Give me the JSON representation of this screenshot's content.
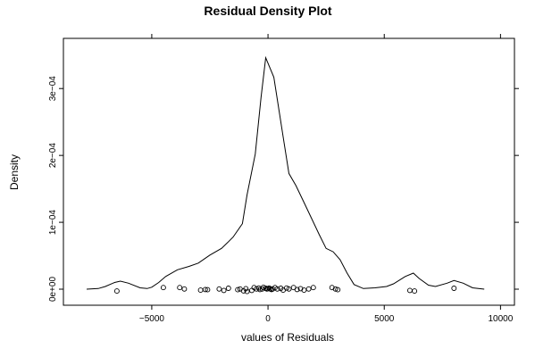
{
  "chart_data": {
    "type": "line",
    "title": "Residual Density Plot",
    "xlabel": "values of Residuals",
    "ylabel": "Density",
    "xlim": [
      -8800,
      10600
    ],
    "ylim": [
      -2.4e-05,
      0.000375
    ],
    "x_ticks": [
      {
        "value": -5000,
        "label": "−5000"
      },
      {
        "value": 0,
        "label": "0"
      },
      {
        "value": 5000,
        "label": "5000"
      },
      {
        "value": 10000,
        "label": "10000"
      }
    ],
    "y_ticks": [
      {
        "value": 0,
        "label": "0e+00"
      },
      {
        "value": 0.0001,
        "label": "1e−04"
      },
      {
        "value": 0.0002,
        "label": "2e−04"
      },
      {
        "value": 0.0003,
        "label": "3e−04"
      }
    ],
    "grid": false,
    "series": [
      {
        "x": [
          -7800,
          -7300,
          -7000,
          -6600,
          -6350,
          -6000,
          -5500,
          -5200,
          -5000,
          -4700,
          -4400,
          -3900,
          -3400,
          -3000,
          -2500,
          -2000,
          -1700,
          -1500,
          -1100,
          -900,
          -550,
          -300,
          -100,
          250,
          650,
          900,
          1200,
          1600,
          2200,
          2500,
          2800,
          3100,
          3400,
          3700,
          4100,
          4600,
          5100,
          5400,
          5900,
          6250,
          6500,
          6900,
          7200,
          7700,
          8000,
          8400,
          8800,
          9300
        ],
        "y": [
          0.0,
          1e-06,
          4e-06,
          1e-05,
          1.2e-05,
          9e-06,
          2e-06,
          1e-06,
          3e-06,
          1e-05,
          1.9e-05,
          2.9e-05,
          3.4e-05,
          3.9e-05,
          5.1e-05,
          6.1e-05,
          7.1e-05,
          7.8e-05,
          9.8e-05,
          0.000141,
          0.000202,
          0.000287,
          0.000346,
          0.000317,
          0.000228,
          0.000173,
          0.000155,
          0.000126,
          8.2e-05,
          6.1e-05,
          5.6e-05,
          4.4e-05,
          2.4e-05,
          7e-06,
          1e-06,
          2e-06,
          4e-06,
          8e-06,
          1.9e-05,
          2.4e-05,
          1.6e-05,
          6e-06,
          4e-06,
          9e-06,
          1.3e-05,
          9e-06,
          2e-06,
          0.0
        ]
      }
    ],
    "rug_points": [
      {
        "x": -6500,
        "y": -2.8e-06
      },
      {
        "x": -4500,
        "y": 2.4e-06
      },
      {
        "x": -3800,
        "y": 2.4e-06
      },
      {
        "x": -3600,
        "y": 3e-07
      },
      {
        "x": -2900,
        "y": -1.5e-06
      },
      {
        "x": -2700,
        "y": -5e-07
      },
      {
        "x": -2600,
        "y": -8e-07
      },
      {
        "x": -2100,
        "y": 3e-07
      },
      {
        "x": -1900,
        "y": -1.8e-06
      },
      {
        "x": -1700,
        "y": 1.3e-06
      },
      {
        "x": -1300,
        "y": -8e-07
      },
      {
        "x": -1200,
        "y": 3e-07
      },
      {
        "x": -1050,
        "y": -2.5e-06
      },
      {
        "x": -950,
        "y": 8e-07
      },
      {
        "x": -900,
        "y": -3.5e-06
      },
      {
        "x": -700,
        "y": -1.8e-06
      },
      {
        "x": -600,
        "y": 2.4e-06
      },
      {
        "x": -500,
        "y": 3e-07
      },
      {
        "x": -400,
        "y": 1.8e-06
      },
      {
        "x": -350,
        "y": -5e-07
      },
      {
        "x": -250,
        "y": 3e-07
      },
      {
        "x": -200,
        "y": 2.8e-06
      },
      {
        "x": -100,
        "y": 1.3e-06
      },
      {
        "x": -50,
        "y": 3e-07
      },
      {
        "x": 0,
        "y": 8e-07
      },
      {
        "x": 50,
        "y": 1.8e-06
      },
      {
        "x": 100,
        "y": 3e-07
      },
      {
        "x": 150,
        "y": -5e-07
      },
      {
        "x": 200,
        "y": 3e-07
      },
      {
        "x": 300,
        "y": 2.4e-06
      },
      {
        "x": 400,
        "y": 3e-07
      },
      {
        "x": 550,
        "y": 1.3e-06
      },
      {
        "x": 650,
        "y": -1.5e-06
      },
      {
        "x": 800,
        "y": 1.8e-06
      },
      {
        "x": 900,
        "y": 3e-07
      },
      {
        "x": 1100,
        "y": 2.4e-06
      },
      {
        "x": 1250,
        "y": -5e-07
      },
      {
        "x": 1400,
        "y": 8e-07
      },
      {
        "x": 1550,
        "y": -1.5e-06
      },
      {
        "x": 1750,
        "y": 3e-07
      },
      {
        "x": 1950,
        "y": 2.4e-06
      },
      {
        "x": 2750,
        "y": 2.4e-06
      },
      {
        "x": 2900,
        "y": 3e-07
      },
      {
        "x": 3000,
        "y": -8e-07
      },
      {
        "x": 6100,
        "y": -1.8e-06
      },
      {
        "x": 6300,
        "y": -2.8e-06
      },
      {
        "x": 8000,
        "y": 1.3e-06
      }
    ]
  }
}
